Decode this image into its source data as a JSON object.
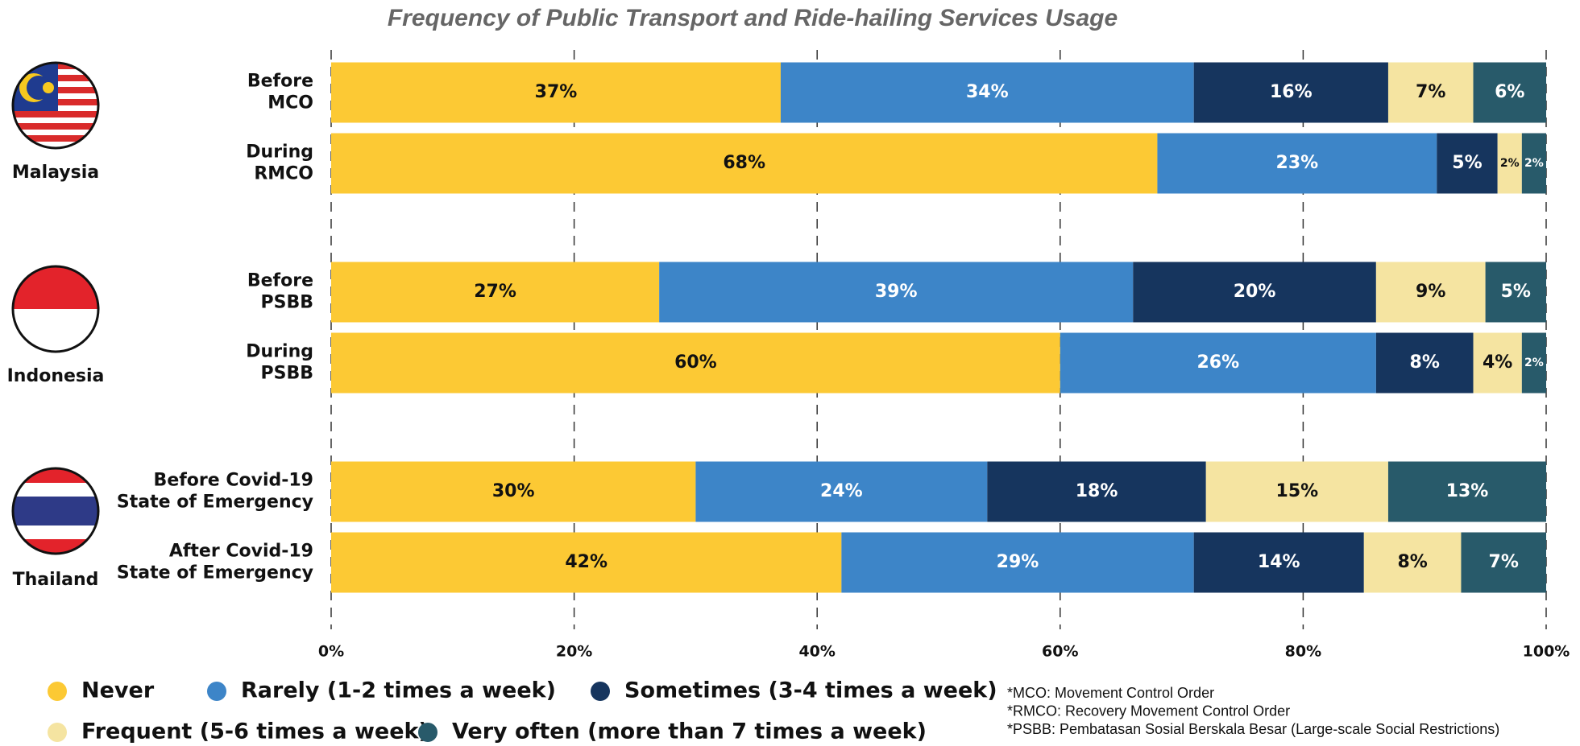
{
  "chart_data": {
    "type": "stacked-bar-horizontal",
    "title": "Frequency of Public Transport and Ride-hailing Services Usage",
    "groups": [
      "Malaysia",
      "Indonesia",
      "Thailand"
    ],
    "categories": [
      [
        "Before",
        "MCO"
      ],
      [
        "During",
        "RMCO"
      ],
      [
        "Before",
        "PSBB"
      ],
      [
        "During",
        "PSBB"
      ],
      [
        "Before Covid-19",
        "State of Emergency"
      ],
      [
        "After Covid-19",
        "State of Emergency"
      ]
    ],
    "series": [
      {
        "name": "Never",
        "color": "#fcc934",
        "values": [
          37,
          68,
          27,
          60,
          30,
          42
        ],
        "value_labels": [
          "37%",
          "68%",
          "27%",
          "60%",
          "30%",
          "42%"
        ]
      },
      {
        "name": "Rarely (1-2 times a week)",
        "color": "#3d85c8",
        "values": [
          34,
          23,
          39,
          26,
          24,
          29
        ],
        "value_labels": [
          "34%",
          "23%",
          "39%",
          "26%",
          "24%",
          "29%"
        ]
      },
      {
        "name": "Sometimes (3-4 times a week)",
        "color": "#16355e",
        "values": [
          16,
          5,
          20,
          8,
          18,
          14
        ],
        "value_labels": [
          "16%",
          "5%",
          "20%",
          "8%",
          "18%",
          "14%"
        ]
      },
      {
        "name": "Frequent (5-6 times a week)",
        "color": "#f5e4a1",
        "values": [
          7,
          2,
          9,
          4,
          15,
          8
        ],
        "value_labels": [
          "7%",
          "2%",
          "9%",
          "4%",
          "15%",
          "8%"
        ]
      },
      {
        "name": "Very often (more than 7 times a week)",
        "color": "#285a6a",
        "values": [
          6,
          2,
          5,
          2,
          13,
          7
        ],
        "value_labels": [
          "6%",
          "2%",
          "5%",
          "2%",
          "13%",
          "7%"
        ]
      }
    ],
    "xlim": [
      0,
      100
    ],
    "xticks": [
      {
        "value": 0,
        "label": "0%"
      },
      {
        "value": 20,
        "label": "20%"
      },
      {
        "value": 40,
        "label": "40%"
      },
      {
        "value": 60,
        "label": "60%"
      },
      {
        "value": 80,
        "label": "80%"
      },
      {
        "value": 100,
        "label": "100%"
      }
    ],
    "grid": true,
    "footnotes": [
      "*MCO: Movement Control Order",
      "*RMCO: Recovery Movement Control Order",
      "*PSBB: Pembatasan Sosial Berskala Besar (Large-scale Social Restrictions)"
    ]
  }
}
